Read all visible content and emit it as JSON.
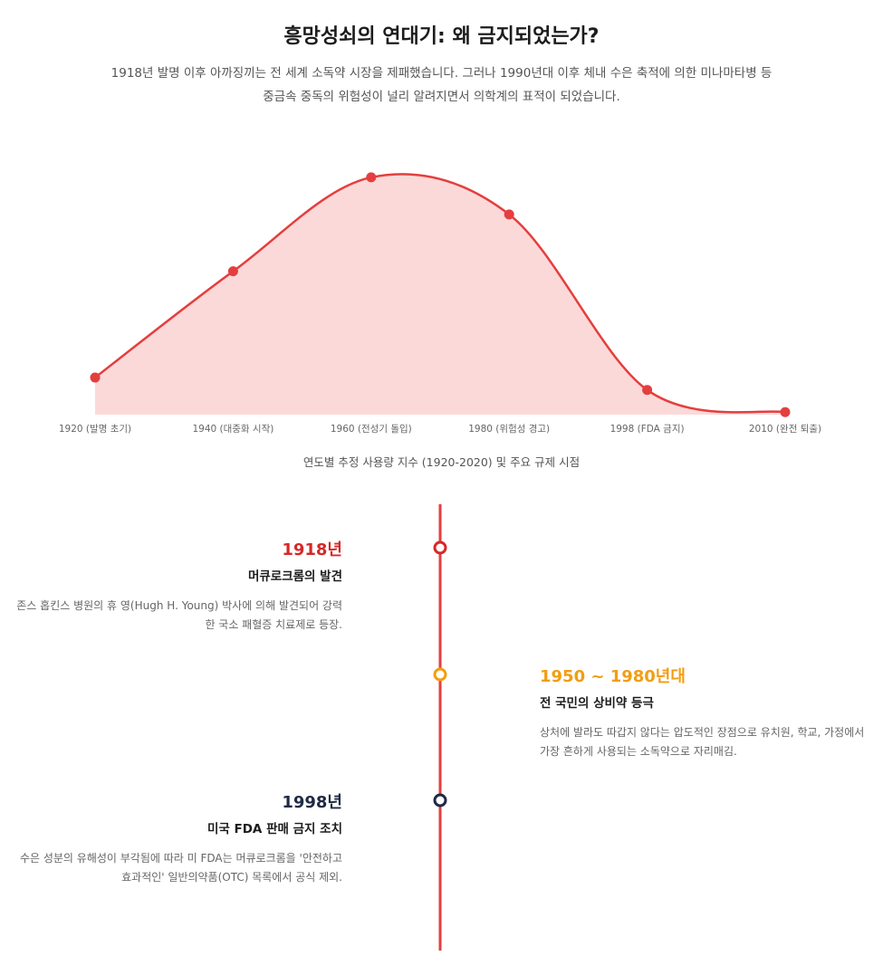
{
  "header": {
    "title": "흥망성쇠의 연대기: 왜 금지되었는가?",
    "subtitle": "1918년 발명 이후 아까징끼는 전 세계 소독약 시장을 제패했습니다. 그러나 1990년대 이후 체내 수은 축적에 의한 미나마타병 등 중금속 중독의 위험성이 널리 알려지면서 의학계의 표적이 되었습니다."
  },
  "chart_data": {
    "type": "area",
    "categories": [
      "1920 (발명 초기)",
      "1940 (대중화 시작)",
      "1960 (전성기 돌입)",
      "1980 (위험성 경고)",
      "1998 (FDA 금지)",
      "2010 (완전 퇴출)"
    ],
    "values": [
      15,
      58,
      96,
      81,
      10,
      1
    ],
    "ylim": [
      0,
      100
    ],
    "color": "#e53e3e",
    "fill": "#fcd9d9",
    "caption": "연도별 추정 사용량 지수 (1920-2020) 및 주요 규제 시점"
  },
  "timeline": {
    "items": [
      {
        "year": "1918년",
        "title": "머큐로크롬의 발견",
        "description": "존스 홉킨스 병원의 휴 영(Hugh H. Young) 박사에 의해 발견되어 강력한 국소 패혈증 치료제로 등장.",
        "color": "#d62828"
      },
      {
        "year": "1950 ~ 1980년대",
        "title": "전 국민의 상비약 등극",
        "description": "상처에 발라도 따갑지 않다는 압도적인 장점으로 유치원, 학교, 가정에서 가장 흔하게 사용되는 소독약으로 자리매김.",
        "color": "#f29d12"
      },
      {
        "year": "1998년",
        "title": "미국 FDA 판매 금지 조치",
        "description": "수은 성분의 유해성이 부각됨에 따라 미 FDA는 머큐로크롬을 '안전하고 효과적인' 일반의약품(OTC) 목록에서 공식 제외.",
        "color": "#1f2a44"
      }
    ]
  }
}
